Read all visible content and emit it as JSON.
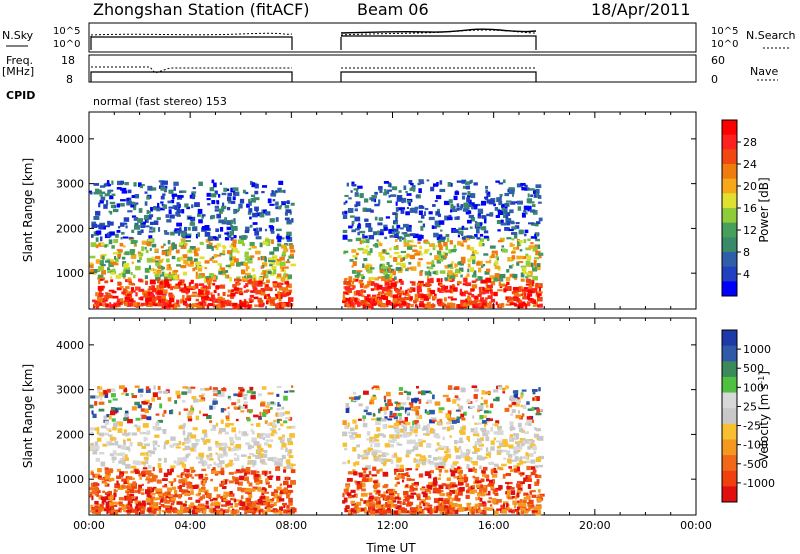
{
  "header": {
    "station": "Zhongshan Station (fitACF)",
    "beam": "Beam 06",
    "date": "18/Apr/2011",
    "cpid_label": "CPID",
    "cpid_text": "normal (fast stereo) 153"
  },
  "noise_panel": {
    "left_label": "N.Sky",
    "right_label": "N.Search",
    "left_top": "10^5",
    "left_bottom": "10^0",
    "right_top": "10^5",
    "right_bottom": "10^0"
  },
  "freq_panel": {
    "left_label_1": "Freq.",
    "left_label_2": "[MHz]",
    "left_top": "18",
    "left_bottom": "8",
    "right_label": "Nave",
    "right_top": "60",
    "right_bottom": "0"
  },
  "colors": {
    "power_scale": [
      "#0000ff",
      "#2040c0",
      "#2f5fa8",
      "#3a8a6a",
      "#46a05a",
      "#8fcc3a",
      "#e0e030",
      "#f5a818",
      "#f07c10",
      "#f04810",
      "#ff2020",
      "#ff0000"
    ],
    "velocity_scale": [
      "#e01010",
      "#f04010",
      "#f06818",
      "#f59820",
      "#f8c030",
      "#c8c8c8",
      "#d8d8d8",
      "#50c040",
      "#3a8a5a",
      "#2e5aa8",
      "#1d3aa8"
    ]
  },
  "chart_data": [
    {
      "type": "heatmap",
      "name": "power",
      "ylabel": "Slant Range [km]",
      "ylim": [
        200,
        4600
      ],
      "yticks": [
        "1000",
        "2000",
        "3000",
        "4000"
      ],
      "xticks": [
        "00:00",
        "04:00",
        "08:00",
        "12:00",
        "16:00",
        "20:00",
        "00:00"
      ],
      "xlim_hours": [
        0,
        24
      ],
      "colorbar_label": "Power [dB]",
      "colorbar_ticks": [
        "4",
        "8",
        "12",
        "16",
        "20",
        "24",
        "28"
      ],
      "data_intervals_hours": [
        [
          0.0,
          8.0
        ],
        [
          10.0,
          17.8
        ]
      ]
    },
    {
      "type": "heatmap",
      "name": "velocity",
      "ylabel": "Slant Range [km]",
      "ylim": [
        200,
        4600
      ],
      "yticks": [
        "1000",
        "2000",
        "3000",
        "4000"
      ],
      "xticks": [
        "00:00",
        "04:00",
        "08:00",
        "12:00",
        "16:00",
        "20:00",
        "00:00"
      ],
      "xlabel": "Time UT",
      "colorbar_label": "Velocity [m s",
      "colorbar_label_sup": "-1",
      "colorbar_label_end": "]",
      "colorbar_ticks": [
        "1000",
        "500",
        "100",
        "25",
        "-25",
        "-100",
        "-500",
        "-1000"
      ],
      "data_intervals_hours": [
        [
          0.0,
          8.0
        ],
        [
          10.0,
          17.8
        ]
      ]
    }
  ]
}
